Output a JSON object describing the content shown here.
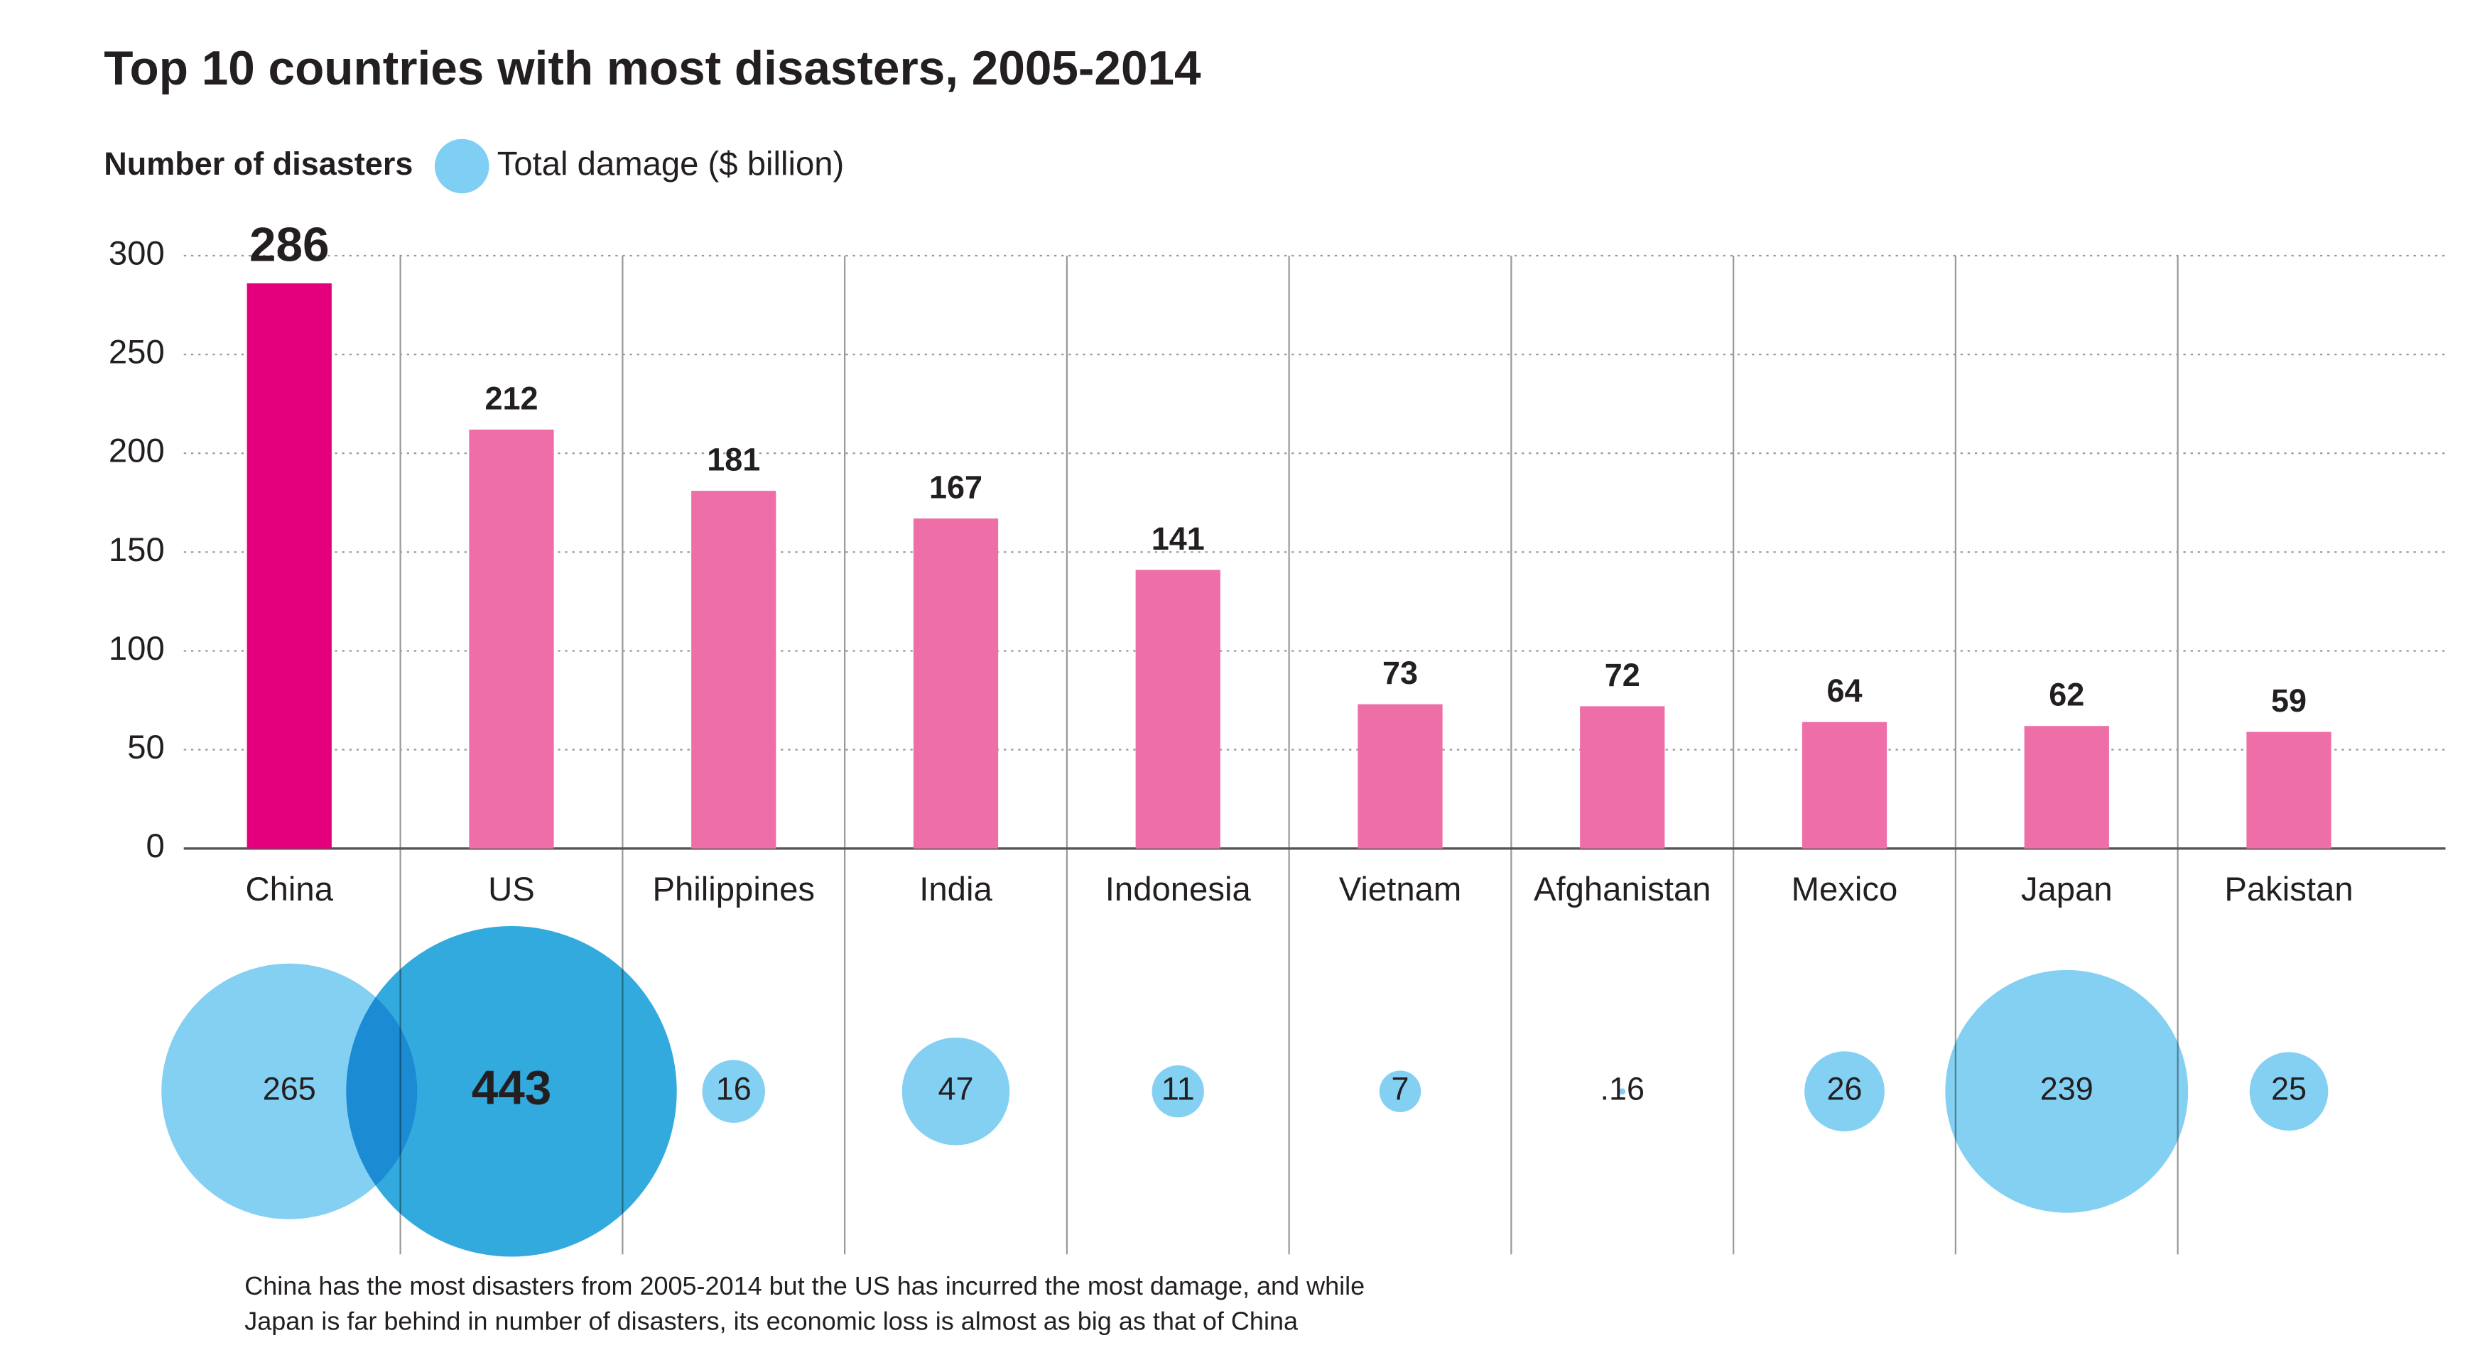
{
  "chart_data": {
    "type": "bar",
    "title": "Top 10 countries with most disasters, 2005-2014",
    "categories": [
      "China",
      "US",
      "Philippines",
      "India",
      "Indonesia",
      "Vietnam",
      "Afghanistan",
      "Mexico",
      "Japan",
      "Pakistan"
    ],
    "series": [
      {
        "name": "Number of disasters",
        "type": "bar",
        "colors": [
          "#e4007c",
          "#ee6ea7",
          "#ee6ea7",
          "#ee6ea7",
          "#ee6ea7",
          "#ee6ea7",
          "#ee6ea7",
          "#ee6ea7",
          "#ee6ea7",
          "#ee6ea7"
        ],
        "values": [
          286,
          212,
          181,
          167,
          141,
          73,
          72,
          64,
          62,
          59
        ]
      },
      {
        "name": "Total damage ($ billion)",
        "type": "bubble",
        "color": "#7fcef3",
        "colors": [
          "#7fcef3",
          "#33aade",
          "#7fcef3",
          "#7fcef3",
          "#7fcef3",
          "#7fcef3",
          "#7fcef3",
          "#7fcef3",
          "#7fcef3",
          "#7fcef3"
        ],
        "values": [
          265,
          443,
          16,
          47,
          11,
          7,
          0.16,
          26,
          239,
          25
        ],
        "value_labels": [
          "265",
          "443",
          "16",
          "47",
          "11",
          "7",
          ".16",
          "26",
          "239",
          "25"
        ]
      }
    ],
    "ylim": [
      0,
      300
    ],
    "yticks": [
      0,
      50,
      100,
      150,
      200,
      250,
      300
    ],
    "grid": true,
    "annotations": [
      "China has the most disasters from 2005-2014 but the US has incurred the most damage, and while",
      "Japan is far behind in number of disasters, its economic loss is almost as big as that of China"
    ]
  }
}
